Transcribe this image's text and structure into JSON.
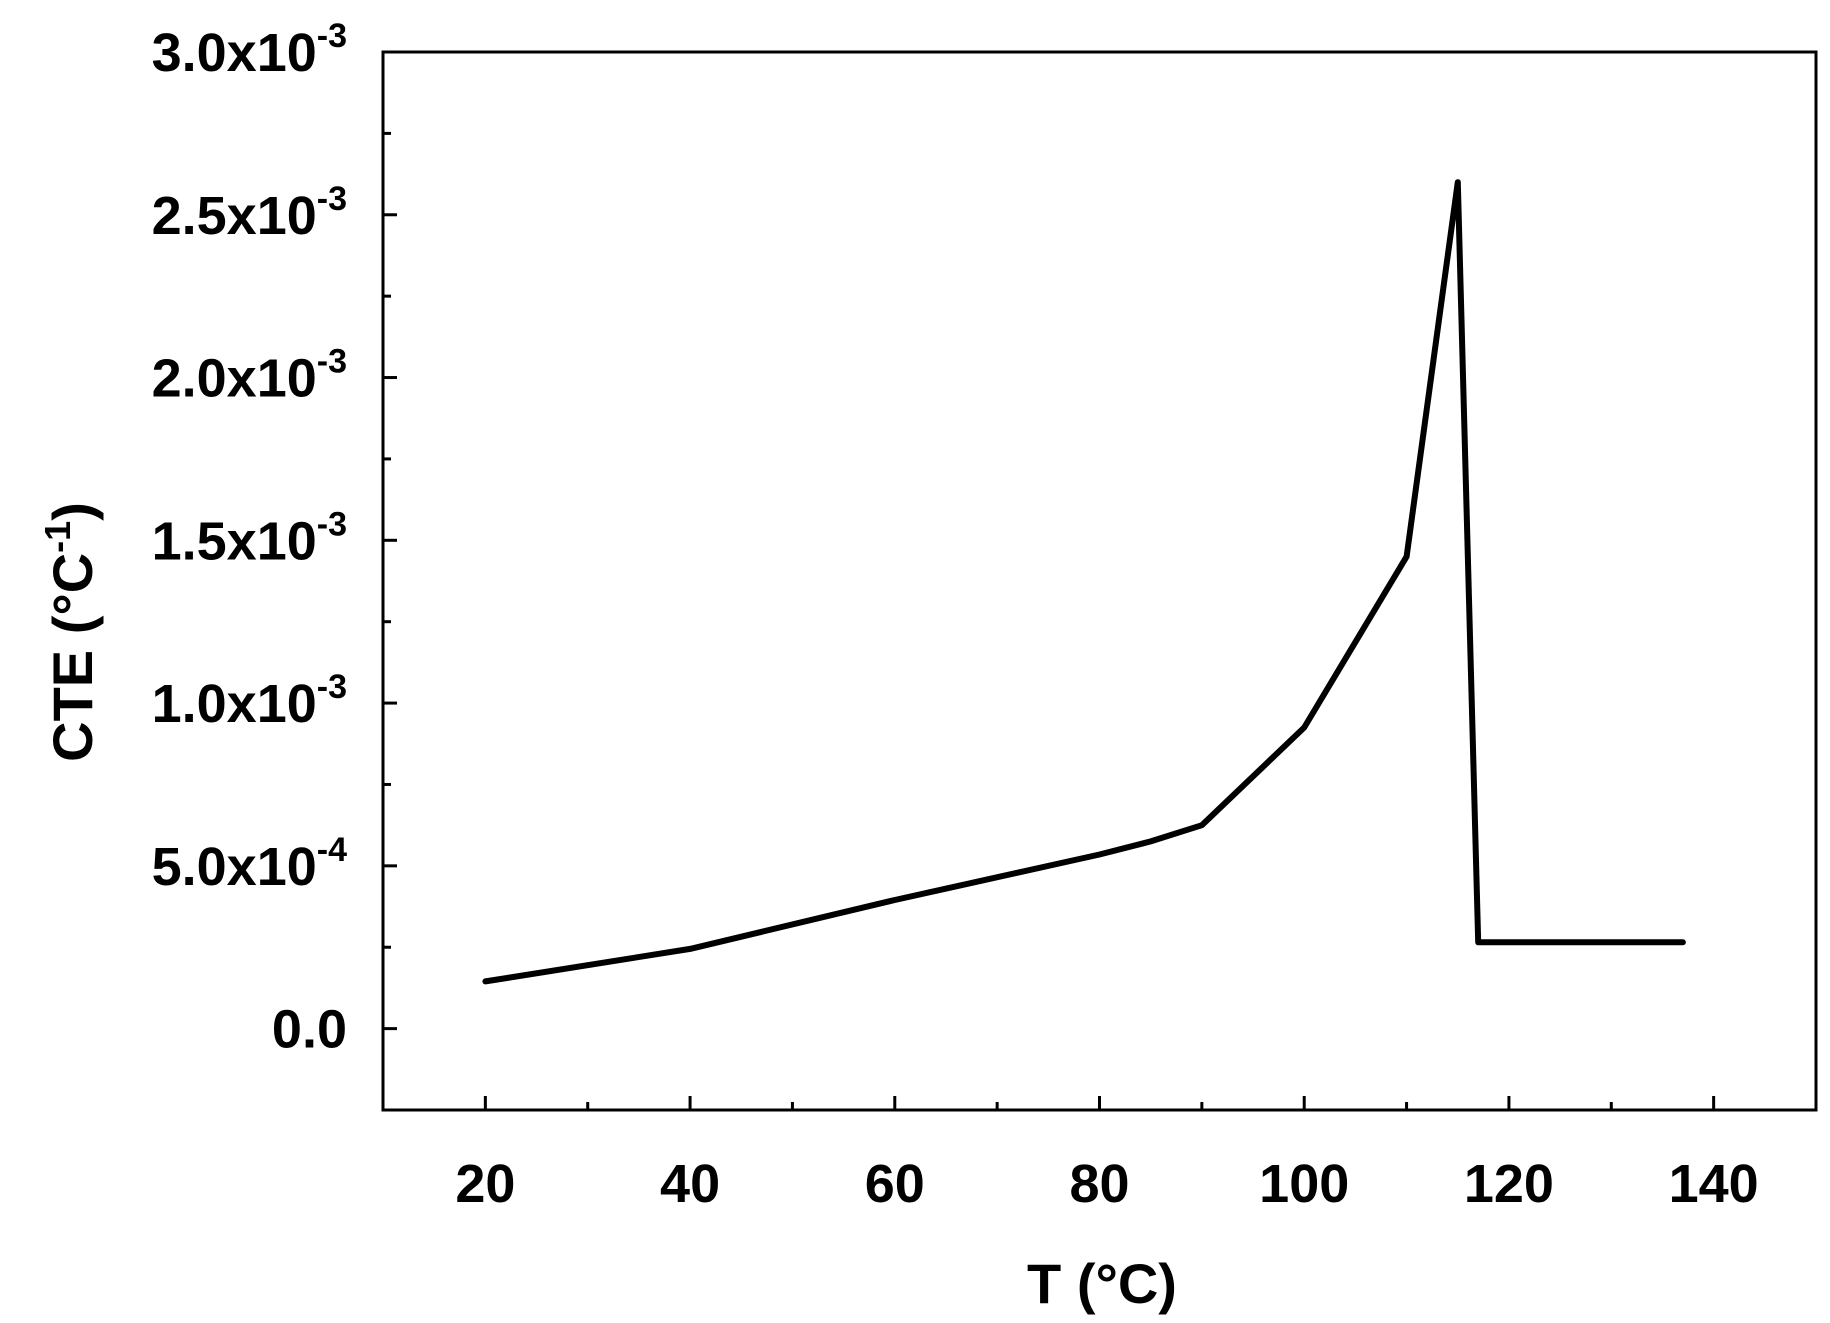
{
  "chart_data": {
    "type": "line",
    "title": "",
    "xlabel": "T (°C)",
    "ylabel_main": "CTE  (°C",
    "ylabel_sup": "-1",
    "ylabel_close": ")",
    "xlim": [
      10,
      150
    ],
    "ylim": [
      -0.00025,
      0.003
    ],
    "x_ticks": [
      20,
      40,
      60,
      80,
      100,
      120,
      140
    ],
    "x_minor_ticks": [
      10,
      30,
      50,
      70,
      90,
      110,
      130,
      150
    ],
    "x_tick_labels": [
      "20",
      "40",
      "60",
      "80",
      "100",
      "120",
      "140"
    ],
    "y_ticks": [
      0,
      0.0005,
      0.001,
      0.0015,
      0.002,
      0.0025,
      0.003
    ],
    "y_minor_ticks": [
      -0.00025,
      0.00025,
      0.00075,
      0.00125,
      0.00175,
      0.00225,
      0.00275
    ],
    "y_tick_labels": [
      {
        "mantissa": "0.0",
        "exp": ""
      },
      {
        "mantissa": "5.0x10",
        "exp": "-4"
      },
      {
        "mantissa": "1.0x10",
        "exp": "-3"
      },
      {
        "mantissa": "1.5x10",
        "exp": "-3"
      },
      {
        "mantissa": "2.0x10",
        "exp": "-3"
      },
      {
        "mantissa": "2.5x10",
        "exp": "-3"
      },
      {
        "mantissa": "3.0x10",
        "exp": "-3"
      }
    ],
    "grid": false,
    "legend": "none",
    "series": [
      {
        "color": "#000000",
        "x": [
          20,
          40,
          60,
          80,
          85,
          90,
          100,
          110,
          115,
          117,
          137
        ],
        "y": [
          0.000145,
          0.000245,
          0.000395,
          0.000535,
          0.000575,
          0.000625,
          0.000925,
          0.00145,
          0.0026,
          0.000265,
          0.000265
        ]
      }
    ]
  }
}
